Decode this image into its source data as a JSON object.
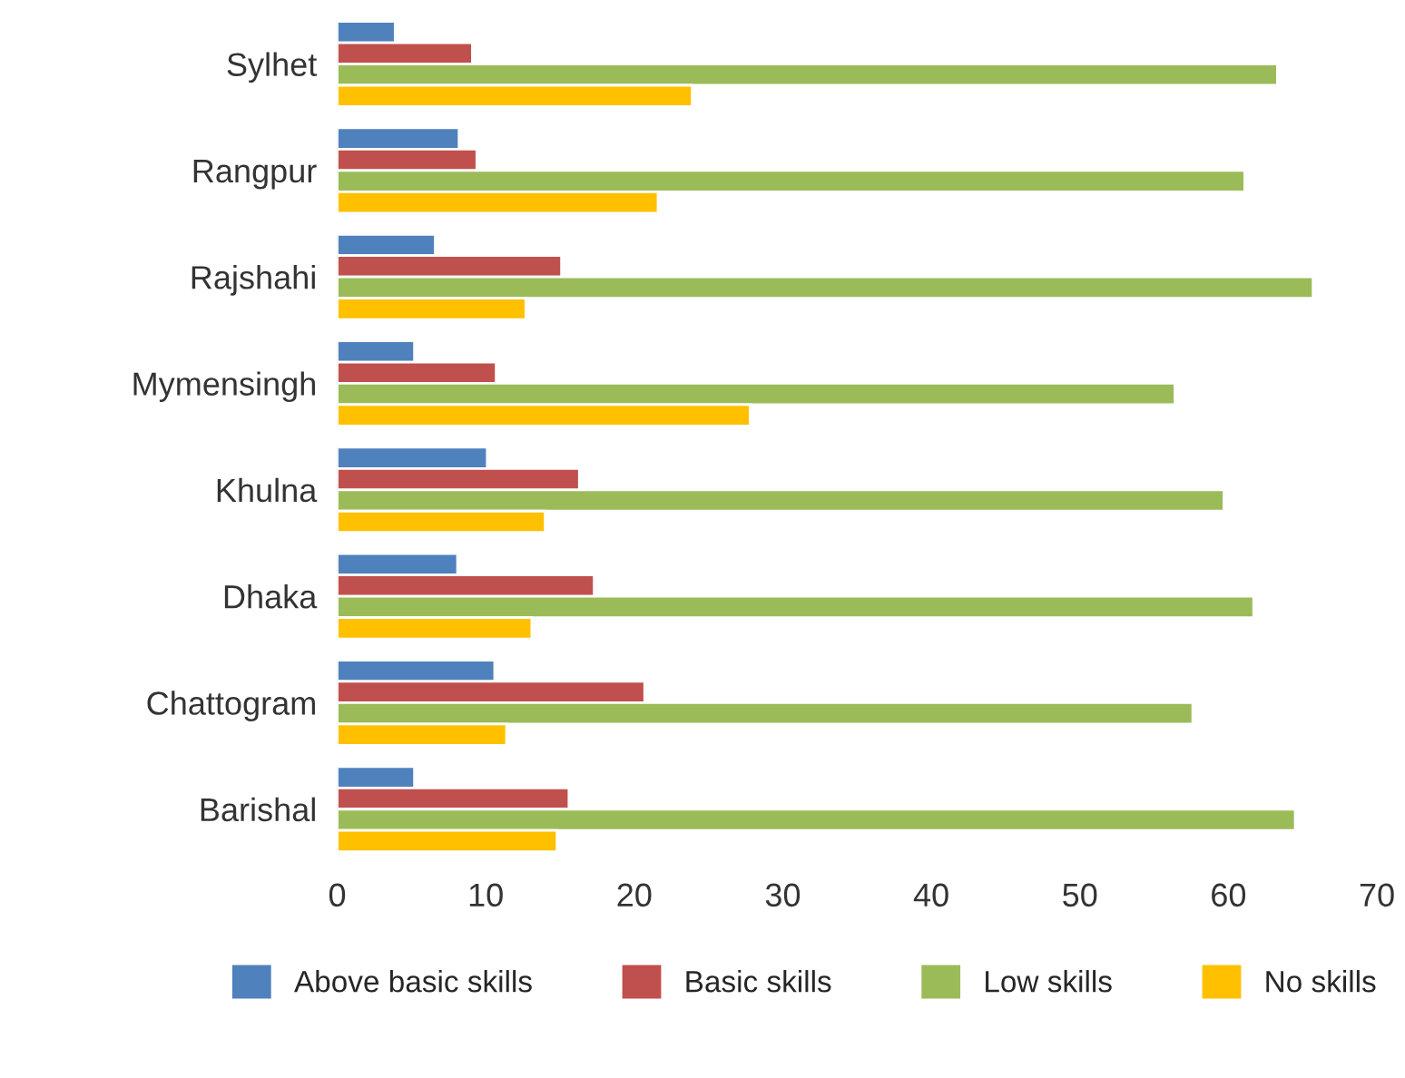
{
  "chart_data": {
    "type": "bar",
    "orientation": "horizontal",
    "categories": [
      "Sylhet",
      "Rangpur",
      "Rajshahi",
      "Mymensingh",
      "Khulna",
      "Dhaka",
      "Chattogram",
      "Barishal"
    ],
    "series": [
      {
        "name": "Above basic skills",
        "color": "#4f81bd",
        "values": [
          3.9,
          8.2,
          6.6,
          5.2,
          10.1,
          8.1,
          10.6,
          5.2
        ]
      },
      {
        "name": "Basic skills",
        "color": "#c0504d",
        "values": [
          9.1,
          9.4,
          15.1,
          10.7,
          16.3,
          17.3,
          20.7,
          15.6
        ]
      },
      {
        "name": "Low skills",
        "color": "#9bbb59",
        "values": [
          63.3,
          61.1,
          65.7,
          56.4,
          59.7,
          61.7,
          57.6,
          64.5
        ]
      },
      {
        "name": "No skills",
        "color": "#ffc000",
        "values": [
          23.9,
          21.6,
          12.7,
          27.8,
          14.0,
          13.1,
          11.4,
          14.8
        ]
      }
    ],
    "xlim": [
      0,
      70
    ],
    "xticks": [
      0,
      10,
      20,
      30,
      40,
      50,
      60,
      70
    ],
    "grid": false,
    "legend": "bottom"
  }
}
